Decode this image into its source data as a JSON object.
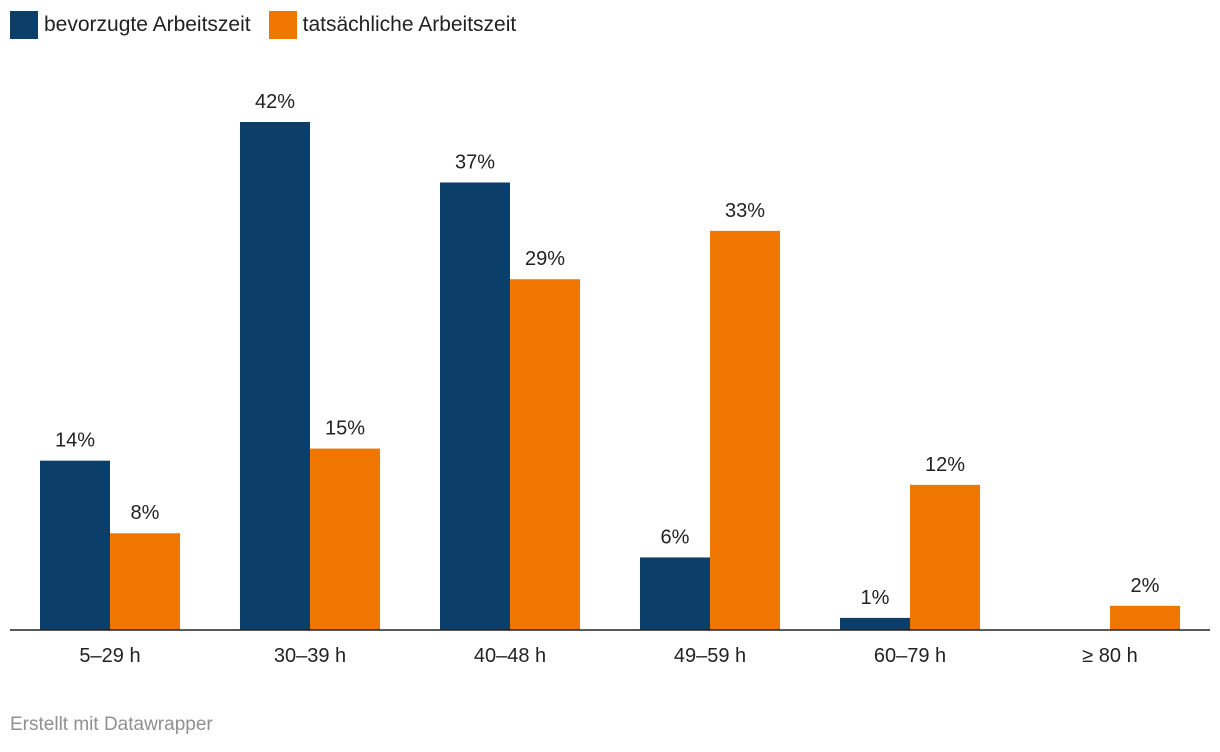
{
  "legend": [
    {
      "label": "bevorzugte Arbeitszeit",
      "color": "#0b3f6a"
    },
    {
      "label": "tatsächliche Arbeitszeit",
      "color": "#ef7700"
    }
  ],
  "footer": {
    "text": "Erstellt mit Datawrapper"
  },
  "chart_data": {
    "type": "bar",
    "categories": [
      "5–29 h",
      "30–39 h",
      "40–48 h",
      "49–59 h",
      "60–79 h",
      "≥ 80 h"
    ],
    "series": [
      {
        "name": "bevorzugte Arbeitszeit",
        "color": "#0b3f6a",
        "values": [
          14,
          42,
          37,
          6,
          1,
          null
        ],
        "labels": [
          "14%",
          "42%",
          "37%",
          "6%",
          "1%",
          ""
        ]
      },
      {
        "name": "tatsächliche Arbeitszeit",
        "color": "#ef7700",
        "values": [
          8,
          15,
          29,
          33,
          12,
          2
        ],
        "labels": [
          "8%",
          "15%",
          "29%",
          "33%",
          "12%",
          "2%"
        ]
      }
    ],
    "ylim": [
      0,
      42
    ],
    "grid": false,
    "legend_position": "top-left",
    "title": "",
    "xlabel": "",
    "ylabel": ""
  }
}
